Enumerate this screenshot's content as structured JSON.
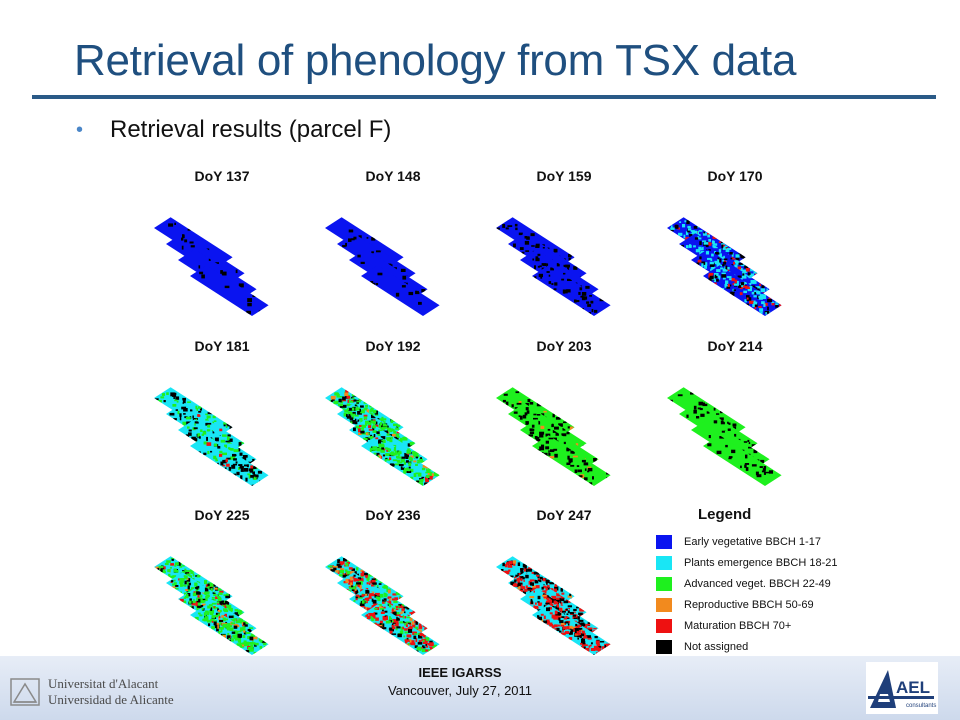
{
  "slide": {
    "title": "Retrieval of phenology from TSX data",
    "bullet": "Retrieval results (parcel F)"
  },
  "panels": [
    {
      "label": "DoY 137",
      "mix": {
        "blue": 0.93,
        "cyan": 0,
        "green": 0,
        "orange": 0,
        "red": 0,
        "black": 0.07
      }
    },
    {
      "label": "DoY 148",
      "mix": {
        "blue": 0.93,
        "cyan": 0,
        "green": 0,
        "orange": 0,
        "red": 0,
        "black": 0.07
      }
    },
    {
      "label": "DoY 159",
      "mix": {
        "blue": 0.82,
        "cyan": 0,
        "green": 0,
        "orange": 0,
        "red": 0,
        "black": 0.18
      }
    },
    {
      "label": "DoY 170",
      "mix": {
        "blue": 0.25,
        "cyan": 0.4,
        "green": 0,
        "orange": 0,
        "red": 0.12,
        "black": 0.23
      }
    },
    {
      "label": "DoY 181",
      "mix": {
        "blue": 0,
        "cyan": 0.5,
        "green": 0.2,
        "orange": 0,
        "red": 0.03,
        "black": 0.27
      }
    },
    {
      "label": "DoY 192",
      "mix": {
        "blue": 0,
        "cyan": 0.05,
        "green": 0.6,
        "orange": 0.05,
        "red": 0.05,
        "black": 0.25
      }
    },
    {
      "label": "DoY 203",
      "mix": {
        "blue": 0,
        "cyan": 0,
        "green": 0.8,
        "orange": 0.03,
        "red": 0,
        "black": 0.17
      }
    },
    {
      "label": "DoY 214",
      "mix": {
        "blue": 0,
        "cyan": 0,
        "green": 0.85,
        "orange": 0,
        "red": 0,
        "black": 0.15
      }
    },
    {
      "label": "DoY 225",
      "mix": {
        "blue": 0,
        "cyan": 0.02,
        "green": 0.6,
        "orange": 0.08,
        "red": 0.1,
        "black": 0.2
      }
    },
    {
      "label": "DoY 236",
      "mix": {
        "blue": 0,
        "cyan": 0.02,
        "green": 0.25,
        "orange": 0.1,
        "red": 0.4,
        "black": 0.23
      }
    },
    {
      "label": "DoY 247",
      "mix": {
        "blue": 0,
        "cyan": 0.08,
        "green": 0,
        "orange": 0.04,
        "red": 0.5,
        "black": 0.38
      }
    }
  ],
  "legend": {
    "title": "Legend",
    "items": [
      {
        "label": "Early vegetative BBCH 1-17",
        "color": "#0a14f0"
      },
      {
        "label": "Plants emergence BBCH 18-21",
        "color": "#19e6f5"
      },
      {
        "label": "Advanced veget. BBCH 22-49",
        "color": "#1ef01e"
      },
      {
        "label": "Reproductive BBCH 50-69",
        "color": "#f28a1e"
      },
      {
        "label": "Maturation BBCH 70+",
        "color": "#ee1111"
      },
      {
        "label": "Not assigned",
        "color": "#000000"
      }
    ]
  },
  "palette": {
    "blue": "#0a14f0",
    "cyan": "#19e6f5",
    "green": "#1ef01e",
    "orange": "#f28a1e",
    "red": "#ee1111",
    "black": "#000000"
  },
  "footer": {
    "university_line1": "Universitat d'Alacant",
    "university_line2": "Universidad de Alicante",
    "conference": "IEEE IGARSS",
    "location_date": "Vancouver, July 27, 2011",
    "company_logo_text": "AEL",
    "company_logo_sub": "consultants"
  },
  "colors": {
    "title": "#1f4f7f",
    "rule": "#2a5a87",
    "bullet": "#4a86c8"
  }
}
